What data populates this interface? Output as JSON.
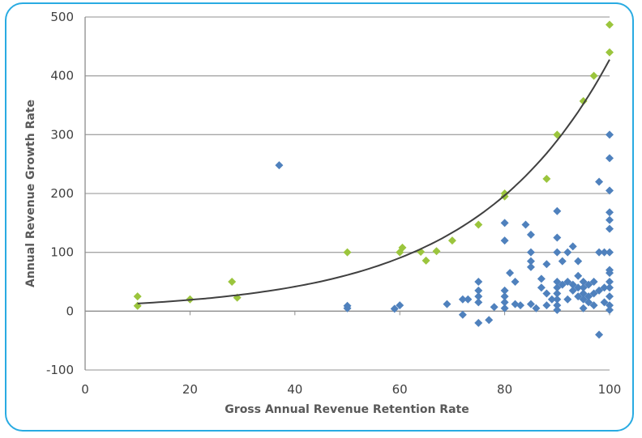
{
  "chart_data": {
    "type": "scatter",
    "title": "",
    "xlabel": "Gross Annual Revenue Retention Rate",
    "ylabel": "Annual Revenue Growth Rate",
    "xlim": [
      0,
      100
    ],
    "ylim": [
      -100,
      500
    ],
    "xticks": [
      "0",
      "20",
      "40",
      "60",
      "80",
      "100"
    ],
    "yticks": [
      "-100",
      "0",
      "100",
      "200",
      "300",
      "400",
      "500"
    ],
    "grid": "horizontal",
    "legend": "none",
    "colors": {
      "blue": "#4f81bd",
      "green": "#9bc53d",
      "trend": "#404040",
      "frame": "#29abe2"
    },
    "series": [
      {
        "color": "#9bc53d",
        "marker": "diamond",
        "points": [
          [
            10,
            25
          ],
          [
            10,
            9
          ],
          [
            20,
            20
          ],
          [
            28,
            50
          ],
          [
            29,
            23
          ],
          [
            50,
            100
          ],
          [
            60,
            100
          ],
          [
            60.5,
            108
          ],
          [
            64,
            101
          ],
          [
            65,
            86
          ],
          [
            67,
            102
          ],
          [
            70,
            120
          ],
          [
            75,
            147
          ],
          [
            80,
            200
          ],
          [
            80,
            195
          ],
          [
            88,
            225
          ],
          [
            90,
            300
          ],
          [
            95,
            357
          ],
          [
            97,
            400
          ],
          [
            100,
            487
          ],
          [
            100,
            440
          ]
        ]
      },
      {
        "color": "#4f81bd",
        "marker": "diamond",
        "points": [
          [
            37,
            248
          ],
          [
            50,
            9
          ],
          [
            50,
            5
          ],
          [
            59,
            4
          ],
          [
            60,
            10
          ],
          [
            69,
            12
          ],
          [
            72,
            -6
          ],
          [
            72,
            20
          ],
          [
            73,
            20
          ],
          [
            75,
            -20
          ],
          [
            75,
            50
          ],
          [
            75,
            35
          ],
          [
            75,
            25
          ],
          [
            75,
            15
          ],
          [
            77,
            -15
          ],
          [
            78,
            7
          ],
          [
            80,
            150
          ],
          [
            80,
            120
          ],
          [
            80,
            35
          ],
          [
            80,
            25
          ],
          [
            80,
            15
          ],
          [
            80,
            5
          ],
          [
            81,
            65
          ],
          [
            82,
            50
          ],
          [
            82,
            12
          ],
          [
            83,
            10
          ],
          [
            84,
            147
          ],
          [
            85,
            130
          ],
          [
            85,
            100
          ],
          [
            85,
            85
          ],
          [
            85,
            75
          ],
          [
            85,
            12
          ],
          [
            86,
            5
          ],
          [
            87,
            55
          ],
          [
            87,
            40
          ],
          [
            88,
            80
          ],
          [
            88,
            30
          ],
          [
            88,
            10
          ],
          [
            89,
            20
          ],
          [
            90,
            170
          ],
          [
            90,
            125
          ],
          [
            90,
            100
          ],
          [
            90,
            50
          ],
          [
            90,
            40
          ],
          [
            90,
            30
          ],
          [
            90,
            20
          ],
          [
            90,
            10
          ],
          [
            90,
            2
          ],
          [
            91,
            85
          ],
          [
            91,
            45
          ],
          [
            92,
            100
          ],
          [
            92,
            50
          ],
          [
            92,
            20
          ],
          [
            93,
            110
          ],
          [
            93,
            45
          ],
          [
            93,
            35
          ],
          [
            94,
            85
          ],
          [
            94,
            60
          ],
          [
            94,
            40
          ],
          [
            94,
            25
          ],
          [
            95,
            50
          ],
          [
            95,
            40
          ],
          [
            95,
            30
          ],
          [
            95,
            20
          ],
          [
            95,
            5
          ],
          [
            96,
            45
          ],
          [
            96,
            15
          ],
          [
            96,
            25
          ],
          [
            97,
            50
          ],
          [
            97,
            30
          ],
          [
            97,
            10
          ],
          [
            98,
            220
          ],
          [
            98,
            100
          ],
          [
            98,
            -40
          ],
          [
            98,
            35
          ],
          [
            99,
            100
          ],
          [
            99,
            40
          ],
          [
            99,
            15
          ],
          [
            100,
            300
          ],
          [
            100,
            260
          ],
          [
            100,
            205
          ],
          [
            100,
            168
          ],
          [
            100,
            155
          ],
          [
            100,
            140
          ],
          [
            100,
            100
          ],
          [
            100,
            70
          ],
          [
            100,
            65
          ],
          [
            100,
            50
          ],
          [
            100,
            40
          ],
          [
            100,
            25
          ],
          [
            100,
            10
          ],
          [
            100,
            2
          ]
        ]
      }
    ],
    "trendline": {
      "type": "exponential",
      "a": 8.83,
      "b": 0.0388,
      "x_range": [
        10,
        100
      ]
    }
  }
}
